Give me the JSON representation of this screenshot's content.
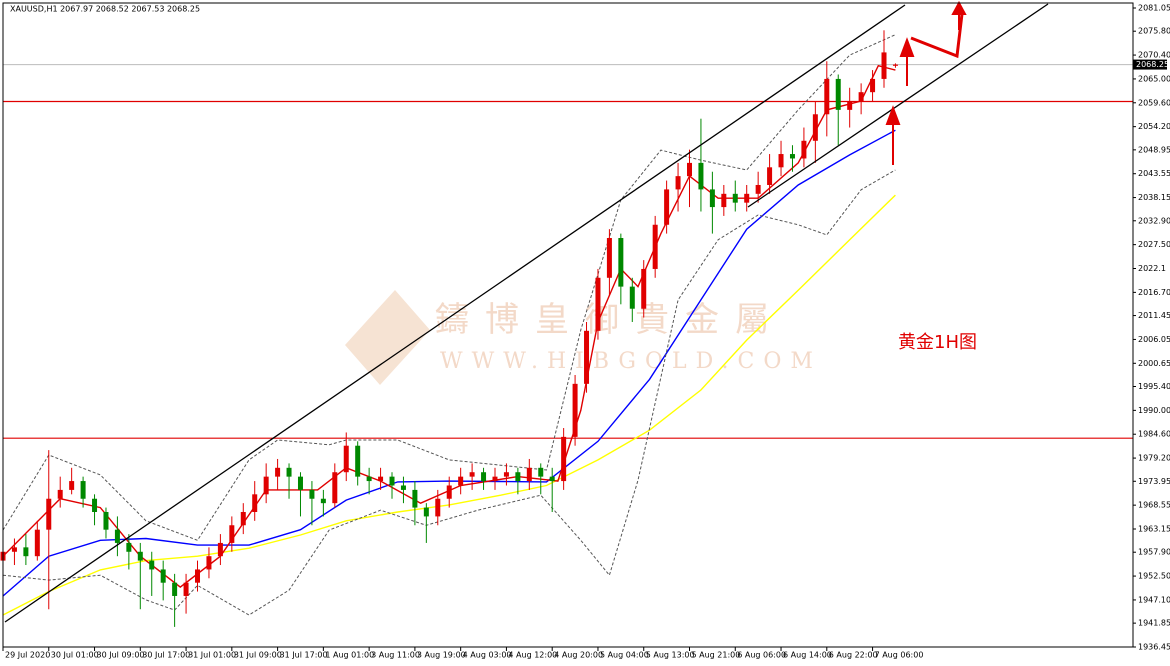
{
  "chart_data": {
    "type": "candlestick",
    "title": "XAUUSD,H1  2067.97 2068.52 2067.53 2068.25",
    "annotation": "黄金1H图",
    "watermark": "鑄博皇御貴金屬",
    "watermark_url": "WWW.HIBGOLD.COM",
    "up_color": "#e00000",
    "down_color": "#008800",
    "xlim": [
      0,
      197
    ],
    "ylim": [
      1936.45,
      2081.05
    ],
    "xticks": [
      {
        "value": 0,
        "label": "29 Jul 2020"
      },
      {
        "value": 8,
        "label": "30 Jul 01:00"
      },
      {
        "value": 16,
        "label": "30 Jul 09:00"
      },
      {
        "value": 24,
        "label": "30 Jul 17:00"
      },
      {
        "value": 32,
        "label": "31 Jul 01:00"
      },
      {
        "value": 40,
        "label": "31 Jul 09:00"
      },
      {
        "value": 48,
        "label": "31 Jul 17:00"
      },
      {
        "value": 56,
        "label": "1 Aug 01:00"
      },
      {
        "value": 64,
        "label": "3 Aug 11:00"
      },
      {
        "value": 72,
        "label": "3 Aug 19:00"
      },
      {
        "value": 80,
        "label": "4 Aug 03:00"
      },
      {
        "value": 88,
        "label": "4 Aug 12:00"
      },
      {
        "value": 96,
        "label": "4 Aug 20:00"
      },
      {
        "value": 104,
        "label": "5 Aug 04:00"
      },
      {
        "value": 112,
        "label": "5 Aug 13:00"
      },
      {
        "value": 120,
        "label": "5 Aug 21:00"
      },
      {
        "value": 128,
        "label": "6 Aug 06:00"
      },
      {
        "value": 136,
        "label": "6 Aug 14:00"
      },
      {
        "value": 144,
        "label": "6 Aug 22:00"
      },
      {
        "value": 152,
        "label": "7 Aug 06:00"
      }
    ],
    "yticks": [
      2081.05,
      {
        "value": 2075.8,
        "label": "2075.80"
      },
      {
        "value": 2070.4,
        "label": "2070.40"
      },
      {
        "value": 2065,
        "label": "2065.00"
      },
      {
        "value": 2059.6,
        "label": "2059.60"
      },
      {
        "value": 2054.2,
        "label": "2054.20"
      },
      2048.95,
      2043.55,
      2038.15,
      {
        "value": 2032.9,
        "label": "2032.90"
      },
      {
        "value": 2027.5,
        "label": "2027.50"
      },
      2022.1,
      {
        "value": 2016.7,
        "label": "2016.70"
      },
      2011.45,
      2006.05,
      2000.65,
      {
        "value": 1995.4,
        "label": "1995.40"
      },
      {
        "value": 1990,
        "label": "1990.00"
      },
      {
        "value": 1984.6,
        "label": "1984.60"
      },
      {
        "value": 1979.2,
        "label": "1979.20"
      },
      1973.95,
      1968.55,
      1963.15,
      {
        "value": 1957.9,
        "label": "1957.90"
      },
      {
        "value": 1952.5,
        "label": "1952.50"
      },
      {
        "value": 1947.1,
        "label": "1947.10"
      },
      1941.85,
      1936.45
    ],
    "last_price": 2068.25,
    "levels": [
      {
        "value": 2059.9,
        "color": "#e00000"
      },
      {
        "value": 1983.7,
        "color": "#e00000"
      }
    ],
    "candles": [
      {
        "x": 0,
        "open": 1956,
        "high": 1960,
        "low": 1954,
        "close": 1958
      },
      {
        "x": 2,
        "open": 1958,
        "high": 1961,
        "low": 1955,
        "close": 1959
      },
      {
        "x": 4,
        "open": 1959,
        "high": 1962,
        "low": 1955,
        "close": 1957
      },
      {
        "x": 6,
        "open": 1957,
        "high": 1965,
        "low": 1956,
        "close": 1963
      },
      {
        "x": 8,
        "open": 1963,
        "high": 1981,
        "low": 1945,
        "close": 1970
      },
      {
        "x": 10,
        "open": 1970,
        "high": 1975,
        "low": 1968,
        "close": 1972
      },
      {
        "x": 12,
        "open": 1972,
        "high": 1977,
        "low": 1971,
        "close": 1974
      },
      {
        "x": 14,
        "open": 1974,
        "high": 1975,
        "low": 1968,
        "close": 1970
      },
      {
        "x": 16,
        "open": 1970,
        "high": 1971,
        "low": 1964,
        "close": 1967
      },
      {
        "x": 18,
        "open": 1967,
        "high": 1968,
        "low": 1961,
        "close": 1963
      },
      {
        "x": 20,
        "open": 1963,
        "high": 1966,
        "low": 1957,
        "close": 1960
      },
      {
        "x": 22,
        "open": 1960,
        "high": 1962,
        "low": 1954,
        "close": 1958
      },
      {
        "x": 24,
        "open": 1958,
        "high": 1960,
        "low": 1945,
        "close": 1956
      },
      {
        "x": 26,
        "open": 1956,
        "high": 1958,
        "low": 1948,
        "close": 1954
      },
      {
        "x": 28,
        "open": 1954,
        "high": 1956,
        "low": 1947,
        "close": 1951
      },
      {
        "x": 30,
        "open": 1951,
        "high": 1953,
        "low": 1941,
        "close": 1948
      },
      {
        "x": 32,
        "open": 1948,
        "high": 1953,
        "low": 1944,
        "close": 1951
      },
      {
        "x": 34,
        "open": 1951,
        "high": 1956,
        "low": 1949,
        "close": 1954
      },
      {
        "x": 36,
        "open": 1954,
        "high": 1959,
        "low": 1952,
        "close": 1957
      },
      {
        "x": 38,
        "open": 1957,
        "high": 1962,
        "low": 1955,
        "close": 1960
      },
      {
        "x": 40,
        "open": 1960,
        "high": 1966,
        "low": 1958,
        "close": 1964
      },
      {
        "x": 42,
        "open": 1964,
        "high": 1969,
        "low": 1962,
        "close": 1967
      },
      {
        "x": 44,
        "open": 1967,
        "high": 1974,
        "low": 1965,
        "close": 1971
      },
      {
        "x": 46,
        "open": 1971,
        "high": 1978,
        "low": 1969,
        "close": 1975
      },
      {
        "x": 48,
        "open": 1975,
        "high": 1979,
        "low": 1972,
        "close": 1977
      },
      {
        "x": 50,
        "open": 1977,
        "high": 1978,
        "low": 1970,
        "close": 1975
      },
      {
        "x": 52,
        "open": 1975,
        "high": 1976,
        "low": 1966,
        "close": 1972
      },
      {
        "x": 54,
        "open": 1972,
        "high": 1974,
        "low": 1964,
        "close": 1970
      },
      {
        "x": 56,
        "open": 1970,
        "high": 1972,
        "low": 1966,
        "close": 1969
      },
      {
        "x": 58,
        "open": 1969,
        "high": 1978,
        "low": 1968,
        "close": 1976
      },
      {
        "x": 60,
        "open": 1976,
        "high": 1985,
        "low": 1974,
        "close": 1982
      },
      {
        "x": 62,
        "open": 1982,
        "high": 1983,
        "low": 1973,
        "close": 1975
      },
      {
        "x": 64,
        "open": 1975,
        "high": 1977,
        "low": 1971,
        "close": 1974
      },
      {
        "x": 66,
        "open": 1974,
        "high": 1977,
        "low": 1972,
        "close": 1975
      },
      {
        "x": 68,
        "open": 1975,
        "high": 1976,
        "low": 1970,
        "close": 1973
      },
      {
        "x": 70,
        "open": 1973,
        "high": 1975,
        "low": 1969,
        "close": 1972
      },
      {
        "x": 72,
        "open": 1972,
        "high": 1974,
        "low": 1964,
        "close": 1968
      },
      {
        "x": 74,
        "open": 1968,
        "high": 1969,
        "low": 1960,
        "close": 1966
      },
      {
        "x": 76,
        "open": 1966,
        "high": 1972,
        "low": 1964,
        "close": 1970
      },
      {
        "x": 78,
        "open": 1970,
        "high": 1975,
        "low": 1968,
        "close": 1973
      },
      {
        "x": 80,
        "open": 1973,
        "high": 1977,
        "low": 1971,
        "close": 1975
      },
      {
        "x": 82,
        "open": 1975,
        "high": 1978,
        "low": 1972,
        "close": 1976
      },
      {
        "x": 84,
        "open": 1976,
        "high": 1977,
        "low": 1972,
        "close": 1974
      },
      {
        "x": 86,
        "open": 1974,
        "high": 1977,
        "low": 1972,
        "close": 1975
      },
      {
        "x": 88,
        "open": 1975,
        "high": 1978,
        "low": 1973,
        "close": 1976
      },
      {
        "x": 90,
        "open": 1976,
        "high": 1977,
        "low": 1971,
        "close": 1974
      },
      {
        "x": 92,
        "open": 1974,
        "high": 1979,
        "low": 1972,
        "close": 1977
      },
      {
        "x": 94,
        "open": 1977,
        "high": 1978,
        "low": 1971,
        "close": 1975
      },
      {
        "x": 96,
        "open": 1975,
        "high": 1977,
        "low": 1967,
        "close": 1974
      },
      {
        "x": 98,
        "open": 1974,
        "high": 1986,
        "low": 1972,
        "close": 1984
      },
      {
        "x": 100,
        "open": 1984,
        "high": 1998,
        "low": 1982,
        "close": 1996
      },
      {
        "x": 102,
        "open": 1996,
        "high": 2010,
        "low": 1994,
        "close": 2008
      },
      {
        "x": 104,
        "open": 2008,
        "high": 2022,
        "low": 2006,
        "close": 2020
      },
      {
        "x": 106,
        "open": 2020,
        "high": 2031,
        "low": 2016,
        "close": 2029
      },
      {
        "x": 108,
        "open": 2029,
        "high": 2030,
        "low": 2014,
        "close": 2018
      },
      {
        "x": 110,
        "open": 2018,
        "high": 2020,
        "low": 2010,
        "close": 2013
      },
      {
        "x": 112,
        "open": 2013,
        "high": 2024,
        "low": 2011,
        "close": 2022
      },
      {
        "x": 114,
        "open": 2022,
        "high": 2034,
        "low": 2020,
        "close": 2032
      },
      {
        "x": 116,
        "open": 2032,
        "high": 2042,
        "low": 2030,
        "close": 2040
      },
      {
        "x": 118,
        "open": 2040,
        "high": 2046,
        "low": 2035,
        "close": 2043
      },
      {
        "x": 120,
        "open": 2043,
        "high": 2049,
        "low": 2036,
        "close": 2046
      },
      {
        "x": 122,
        "open": 2046,
        "high": 2056,
        "low": 2035,
        "close": 2040
      },
      {
        "x": 124,
        "open": 2040,
        "high": 2044,
        "low": 2030,
        "close": 2036
      },
      {
        "x": 126,
        "open": 2036,
        "high": 2041,
        "low": 2034,
        "close": 2039
      },
      {
        "x": 128,
        "open": 2039,
        "high": 2042,
        "low": 2035,
        "close": 2037
      },
      {
        "x": 130,
        "open": 2037,
        "high": 2041,
        "low": 2035,
        "close": 2039
      },
      {
        "x": 132,
        "open": 2039,
        "high": 2044,
        "low": 2037,
        "close": 2041
      },
      {
        "x": 134,
        "open": 2041,
        "high": 2048,
        "low": 2039,
        "close": 2045
      },
      {
        "x": 136,
        "open": 2045,
        "high": 2051,
        "low": 2043,
        "close": 2048
      },
      {
        "x": 138,
        "open": 2048,
        "high": 2050,
        "low": 2044,
        "close": 2047
      },
      {
        "x": 140,
        "open": 2047,
        "high": 2054,
        "low": 2045,
        "close": 2051
      },
      {
        "x": 142,
        "open": 2051,
        "high": 2060,
        "low": 2046,
        "close": 2057
      },
      {
        "x": 144,
        "open": 2057,
        "high": 2069,
        "low": 2052,
        "close": 2065
      },
      {
        "x": 146,
        "open": 2065,
        "high": 2066,
        "low": 2050,
        "close": 2058
      },
      {
        "x": 148,
        "open": 2058,
        "high": 2063,
        "low": 2054,
        "close": 2060
      },
      {
        "x": 150,
        "open": 2060,
        "high": 2064,
        "low": 2057,
        "close": 2062
      },
      {
        "x": 152,
        "open": 2062,
        "high": 2067,
        "low": 2060,
        "close": 2065
      },
      {
        "x": 154,
        "open": 2065,
        "high": 2076,
        "low": 2063,
        "close": 2071
      },
      {
        "x": 156,
        "open": 2067.97,
        "high": 2068.52,
        "low": 2067.53,
        "close": 2068.25
      }
    ],
    "series": [
      {
        "color": "#ffff00",
        "dash": false,
        "x": [
          0,
          8,
          17,
          25,
          34,
          43,
          52,
          60,
          69,
          78,
          87,
          95,
          104,
          113,
          122,
          130,
          139,
          148,
          156
        ],
        "values": [
          1943.7,
          1949,
          1953.9,
          1956,
          1957,
          1958.8,
          1961.8,
          1965,
          1967,
          1968.6,
          1970.8,
          1973,
          1978.8,
          1985.5,
          1994.6,
          2005.9,
          2017.2,
          2028.6,
          2038.7
        ]
      },
      {
        "color": "#0000ff",
        "dash": false,
        "x": [
          0,
          8,
          17,
          25,
          34,
          43,
          52,
          60,
          69,
          78,
          87,
          95,
          104,
          113,
          122,
          130,
          139,
          148,
          156
        ],
        "values": [
          1948,
          1957,
          1960.6,
          1961,
          1959.5,
          1959.5,
          1963,
          1969.7,
          1973.8,
          1974,
          1973.9,
          1973.8,
          1983,
          1997,
          2015,
          2031,
          2041,
          2047.8,
          2053.4
        ]
      },
      {
        "color": "#e00000",
        "dash": false,
        "x": [
          0,
          10,
          17,
          24,
          31,
          38,
          46,
          55,
          60,
          66,
          73,
          80,
          90,
          97,
          101,
          104,
          108,
          111,
          115,
          120,
          125,
          132,
          139,
          144,
          150,
          153,
          156
        ],
        "values": [
          1957,
          1970,
          1968,
          1957,
          1950,
          1957,
          1972,
          1972,
          1977,
          1974,
          1969,
          1973,
          1975,
          1974,
          1990,
          2010,
          2022,
          2018,
          2030,
          2043,
          2038,
          2038,
          2046,
          2058,
          2060,
          2068,
          2067
        ]
      },
      {
        "color": "#555555",
        "dash": true,
        "x": [
          0,
          8,
          17,
          25,
          34,
          43,
          48,
          57,
          60,
          69,
          78,
          87,
          95,
          101,
          108,
          115,
          122,
          130,
          139,
          148,
          156
        ],
        "values": [
          1962.9,
          1979.9,
          1975.4,
          1965,
          1960.6,
          1978.8,
          1983.3,
          1982.2,
          1983.3,
          1983.3,
          1978.8,
          1977.6,
          1976.5,
          2008.2,
          2037.6,
          2048.9,
          2046.6,
          2044.4,
          2058,
          2070.4,
          2075
        ]
      },
      {
        "color": "#555555",
        "dash": true,
        "x": [
          0,
          8,
          17,
          25,
          30,
          34,
          43,
          50,
          57,
          66,
          74,
          83,
          94,
          101,
          106,
          111,
          118,
          125,
          132,
          139,
          144,
          150,
          156
        ],
        "values": [
          1952.7,
          1951.6,
          1952.7,
          1947.1,
          1944.8,
          1950.4,
          1943.7,
          1949.3,
          1962.9,
          1967.4,
          1964,
          1967.4,
          1970.8,
          1960.6,
          1952.7,
          1974.2,
          2015,
          2028.6,
          2034.2,
          2032,
          2029.7,
          2039.9,
          2044.4
        ]
      }
    ]
  }
}
